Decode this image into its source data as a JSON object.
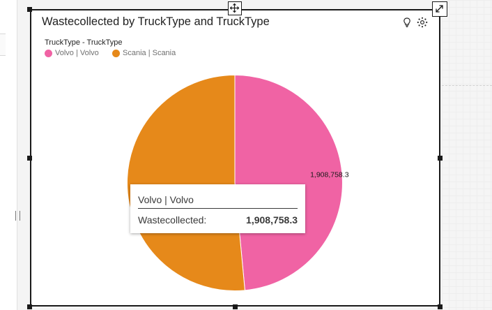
{
  "widget": {
    "title": "Wastecollected by TruckType and TruckType",
    "toolbar_icons": [
      "lightbulb-icon",
      "settings-icon"
    ],
    "move_icon": "move-icon",
    "expand_icon": "expand-icon"
  },
  "legend": {
    "title": "TruckType - TruckType",
    "items": [
      {
        "label": "Volvo | Volvo",
        "color": "#f063a4"
      },
      {
        "label": "Scania | Scania",
        "color": "#e6891a"
      }
    ]
  },
  "tooltip": {
    "title": "Volvo | Volvo",
    "label": "Wastecollected:",
    "value": "1,908,758.3"
  },
  "chart_data": {
    "type": "pie",
    "title": "Wastecollected by TruckType and TruckType",
    "legend_title": "TruckType - TruckType",
    "legend_position": "top-left",
    "categories": [
      "Volvo | Volvo",
      "Scania | Scania"
    ],
    "values": [
      1908758.3,
      2026000
    ],
    "colors": [
      "#f063a4",
      "#e6891a"
    ],
    "data_labels": [
      "1,908,758.3",
      ""
    ]
  }
}
